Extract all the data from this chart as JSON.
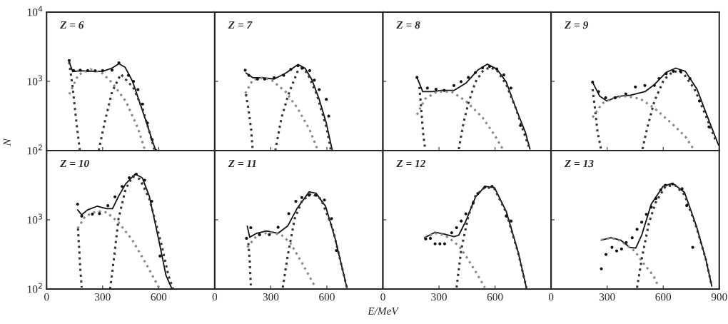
{
  "chart_data": [
    {
      "type": "line",
      "annotations": [
        "Z = 6"
      ],
      "ylabel": "N",
      "log": "y",
      "xlim": [
        0,
        900
      ],
      "xticks": [
        0,
        300,
        600
      ],
      "ylim": [
        100,
        10000
      ],
      "yticks": [
        {
          "value": 100,
          "label": "10$^{2}$"
        },
        {
          "value": 1000,
          "label": "10$^{3}$"
        },
        {
          "value": 10000,
          "label": "10$^{4}$"
        }
      ],
      "tick_labels": "y",
      "series": [
        {
          "type": "scatter",
          "marker": "circle",
          "color": "#111111",
          "x": [
            121,
            145,
            180,
            220,
            260,
            300,
            350,
            387,
            438,
            465,
            489,
            514,
            540,
            565,
            585
          ],
          "values": [
            2000,
            1430,
            1450,
            1430,
            1420,
            1430,
            1450,
            1850,
            1220,
            1000,
            760,
            470,
            250,
            144,
            100
          ]
        },
        {
          "type": "line",
          "line_style": "solid",
          "color": "#111111",
          "x": [
            121,
            140,
            180,
            240,
            300,
            350,
            387,
            420,
            460,
            500,
            540,
            565,
            585
          ],
          "values": [
            1900,
            1380,
            1420,
            1400,
            1400,
            1550,
            1800,
            1600,
            1000,
            480,
            230,
            140,
            100
          ]
        },
        {
          "type": "line",
          "line_style": "dotted",
          "color": "#333333",
          "x": [
            121,
            140,
            160,
            178
          ],
          "values": [
            1900,
            800,
            250,
            100
          ]
        },
        {
          "type": "line",
          "line_style": "dotted",
          "color": "#888888",
          "x": [
            121,
            170,
            235,
            300,
            350,
            425,
            489,
            527
          ],
          "values": [
            650,
            1250,
            1490,
            1300,
            960,
            510,
            210,
            100
          ]
        },
        {
          "type": "line",
          "line_style": "dotted",
          "color": "#333333",
          "x": [
            279,
            310,
            350,
            397,
            463,
            514,
            552,
            578
          ],
          "values": [
            100,
            250,
            700,
            1270,
            820,
            400,
            180,
            100
          ]
        }
      ]
    },
    {
      "type": "line",
      "annotations": [
        "Z = 7"
      ],
      "log": "y",
      "xlim": [
        0,
        900
      ],
      "xticks": [
        0,
        300,
        600
      ],
      "ylim": [
        100,
        10000
      ],
      "yticks": [
        100,
        1000,
        10000
      ],
      "tick_labels": false,
      "series": [
        {
          "type": "scatter",
          "marker": "circle",
          "color": "#111111",
          "x": [
            163,
            183,
            229,
            267,
            318,
            369,
            407,
            445,
            470,
            508,
            533,
            559,
            597,
            610
          ],
          "values": [
            1450,
            1220,
            1080,
            1080,
            1130,
            1220,
            1490,
            1680,
            1550,
            1430,
            1040,
            760,
            550,
            315
          ]
        },
        {
          "type": "line",
          "line_style": "solid",
          "color": "#111111",
          "x": [
            167,
            203,
            254,
            318,
            381,
            445,
            483,
            521,
            559,
            597,
            629
          ],
          "values": [
            1320,
            1130,
            1130,
            1080,
            1320,
            1750,
            1550,
            1040,
            550,
            250,
            100
          ]
        },
        {
          "type": "line",
          "line_style": "dotted",
          "color": "#333333",
          "x": [
            167,
            180,
            195,
            203
          ],
          "values": [
            650,
            400,
            200,
            100
          ]
        },
        {
          "type": "line",
          "line_style": "dotted",
          "color": "#888888",
          "x": [
            163,
            203,
            254,
            305,
            381,
            445,
            508,
            552
          ],
          "values": [
            670,
            1040,
            1130,
            1040,
            700,
            400,
            200,
            100
          ]
        },
        {
          "type": "line",
          "line_style": "dotted",
          "color": "#333333",
          "x": [
            324,
            356,
            394,
            445,
            464,
            496,
            546,
            597,
            622
          ],
          "values": [
            100,
            290,
            645,
            1430,
            1550,
            1320,
            645,
            220,
            100
          ]
        }
      ]
    },
    {
      "type": "line",
      "annotations": [
        "Z = 8"
      ],
      "log": "y",
      "xlim": [
        0,
        900
      ],
      "xticks": [
        0,
        300,
        600
      ],
      "ylim": [
        100,
        10000
      ],
      "yticks": [
        100,
        1000,
        10000
      ],
      "tick_labels": false,
      "series": [
        {
          "type": "scatter",
          "marker": "circle",
          "color": "#111111",
          "x": [
            182,
            238,
            284,
            328,
            380,
            418,
            457,
            495,
            533,
            571,
            609,
            647,
            685,
            736
          ],
          "values": [
            1140,
            800,
            770,
            740,
            870,
            990,
            1140,
            1340,
            1570,
            1640,
            1510,
            1240,
            800,
            230
          ]
        },
        {
          "type": "line",
          "line_style": "solid",
          "color": "#111111",
          "x": [
            182,
            213,
            265,
            316,
            380,
            444,
            507,
            558,
            609,
            660,
            711,
            762,
            787
          ],
          "values": [
            1140,
            710,
            710,
            740,
            740,
            940,
            1450,
            1770,
            1510,
            980,
            410,
            185,
            105
          ]
        },
        {
          "type": "line",
          "line_style": "dotted",
          "color": "#333333",
          "x": [
            195,
            205,
            215,
            226
          ],
          "values": [
            830,
            400,
            180,
            105
          ]
        },
        {
          "type": "line",
          "line_style": "dotted",
          "color": "#888888",
          "x": [
            182,
            226,
            290,
            367,
            444,
            533,
            596,
            641
          ],
          "values": [
            330,
            560,
            710,
            710,
            520,
            300,
            170,
            105
          ]
        },
        {
          "type": "line",
          "line_style": "dotted",
          "color": "#333333",
          "x": [
            406,
            431,
            457,
            495,
            533,
            571,
            609,
            660,
            711,
            749,
            785
          ],
          "values": [
            105,
            250,
            480,
            980,
            1390,
            1600,
            1450,
            900,
            410,
            200,
            105
          ]
        }
      ]
    },
    {
      "type": "line",
      "annotations": [
        "Z = 9"
      ],
      "log": "y",
      "xlim": [
        0,
        900
      ],
      "xticks": [
        0,
        300,
        600
      ],
      "ylim": [
        100,
        10000
      ],
      "yticks": [
        100,
        1000,
        10000
      ],
      "tick_labels": false,
      "series": [
        {
          "type": "scatter",
          "marker": "circle",
          "color": "#111111",
          "x": [
            222,
            254,
            292,
            343,
            400,
            451,
            502,
            553,
            578,
            616,
            654,
            692,
            743,
            794,
            845
          ],
          "values": [
            975,
            710,
            580,
            580,
            660,
            830,
            870,
            870,
            1100,
            1290,
            1400,
            1400,
            1100,
            520,
            220
          ]
        },
        {
          "type": "line",
          "line_style": "solid",
          "color": "#111111",
          "x": [
            222,
            260,
            299,
            362,
            426,
            502,
            553,
            616,
            667,
            718,
            781,
            845,
            896
          ],
          "values": [
            975,
            610,
            520,
            610,
            630,
            710,
            900,
            1350,
            1550,
            1400,
            770,
            270,
            120
          ]
        },
        {
          "type": "line",
          "line_style": "dotted",
          "color": "#333333",
          "x": [
            222,
            235,
            248,
            267
          ],
          "values": [
            770,
            400,
            190,
            105
          ]
        },
        {
          "type": "line",
          "line_style": "dotted",
          "color": "#888888",
          "x": [
            222,
            273,
            337,
            400,
            477,
            553,
            654,
            718,
            762
          ],
          "values": [
            300,
            480,
            580,
            610,
            560,
            410,
            235,
            160,
            105
          ]
        },
        {
          "type": "line",
          "line_style": "dotted",
          "color": "#333333",
          "x": [
            489,
            515,
            553,
            604,
            654,
            705,
            768,
            832,
            883
          ],
          "values": [
            105,
            215,
            520,
            1060,
            1400,
            1340,
            770,
            300,
            135
          ]
        }
      ]
    },
    {
      "type": "line",
      "annotations": [
        "Z = 10"
      ],
      "log": "y",
      "xlim": [
        0,
        900
      ],
      "xticks": [
        0,
        300,
        600
      ],
      "ylim": [
        100,
        10000
      ],
      "yticks": [
        {
          "value": 100,
          "label": "10$^{2}$"
        },
        {
          "value": 1000,
          "label": "10$^{3}$"
        },
        {
          "value": 10000,
          "label": null
        }
      ],
      "series": [
        {
          "type": "scatter",
          "marker": "circle",
          "color": "#111111",
          "x": [
            166,
            188,
            245,
            283,
            328,
            366,
            404,
            442,
            480,
            525,
            563,
            607
          ],
          "values": [
            1680,
            1130,
            1210,
            1230,
            1600,
            2150,
            3030,
            4050,
            4570,
            3730,
            1850,
            300
          ]
        },
        {
          "type": "line",
          "line_style": "solid",
          "color": "#111111",
          "x": [
            166,
            188,
            219,
            270,
            321,
            353,
            385,
            423,
            474,
            512,
            550,
            601,
            639,
            671
          ],
          "values": [
            1390,
            1180,
            1390,
            1570,
            1450,
            1450,
            2180,
            3300,
            4570,
            4050,
            2180,
            500,
            157,
            100
          ]
        },
        {
          "type": "line",
          "line_style": "dotted",
          "color": "#333333",
          "x": [
            168,
            174,
            180,
            188
          ],
          "values": [
            750,
            400,
            200,
            105
          ]
        },
        {
          "type": "line",
          "line_style": "dotted",
          "color": "#888888",
          "x": [
            166,
            207,
            270,
            321,
            385,
            461,
            537,
            601
          ],
          "values": [
            750,
            1130,
            1330,
            1280,
            920,
            500,
            220,
            105
          ]
        },
        {
          "type": "line",
          "line_style": "dotted",
          "color": "#333333",
          "x": [
            340,
            359,
            385,
            423,
            461,
            499,
            550,
            613,
            652,
            677
          ],
          "values": [
            100,
            257,
            1040,
            2790,
            4220,
            3880,
            2010,
            460,
            157,
            100
          ]
        }
      ]
    },
    {
      "type": "line",
      "annotations": [
        "Z = 11"
      ],
      "xlabel": "E/MeV",
      "log": "y",
      "xlim": [
        0,
        900
      ],
      "xticks": [
        0,
        300,
        600
      ],
      "ylim": [
        100,
        10000
      ],
      "yticks": [
        100,
        1000,
        10000
      ],
      "tick_labels": "x",
      "series": [
        {
          "type": "scatter",
          "marker": "circle",
          "color": "#111111",
          "x": [
            170,
            193,
            239,
            292,
            339,
            396,
            434,
            466,
            505,
            543,
            587,
            625,
            651
          ],
          "values": [
            540,
            770,
            610,
            610,
            780,
            1230,
            1850,
            2100,
            2270,
            2270,
            1930,
            1040,
            360
          ]
        },
        {
          "type": "line",
          "line_style": "solid",
          "color": "#111111",
          "x": [
            174,
            187,
            225,
            276,
            339,
            390,
            440,
            505,
            543,
            593,
            644,
            682,
            707
          ],
          "values": [
            810,
            560,
            640,
            690,
            640,
            810,
            1450,
            2530,
            2410,
            1570,
            540,
            200,
            105
          ]
        },
        {
          "type": "line",
          "line_style": "dotted",
          "color": "#333333",
          "x": [
            180,
            187,
            193
          ],
          "values": [
            460,
            257,
            113
          ]
        },
        {
          "type": "line",
          "line_style": "dotted",
          "color": "#888888",
          "x": [
            174,
            225,
            292,
            355,
            405,
            466,
            537
          ],
          "values": [
            400,
            590,
            660,
            610,
            460,
            240,
            108
          ]
        },
        {
          "type": "line",
          "line_style": "dotted",
          "color": "#333333",
          "x": [
            364,
            390,
            428,
            466,
            517,
            568,
            631,
            682,
            707
          ],
          "values": [
            105,
            300,
            1040,
            1850,
            2410,
            2000,
            750,
            200,
            105
          ]
        }
      ]
    },
    {
      "type": "line",
      "annotations": [
        "Z = 12"
      ],
      "log": "y",
      "xlim": [
        0,
        900
      ],
      "xticks": [
        0,
        300,
        600
      ],
      "ylim": [
        100,
        10000
      ],
      "yticks": [
        100,
        1000,
        10000
      ],
      "tick_labels": "x",
      "series": [
        {
          "type": "scatter",
          "marker": "circle",
          "color": "#111111",
          "x": [
            229,
            254,
            279,
            305,
            330,
            368,
            394,
            419,
            444,
            483,
            508,
            546,
            584,
            660,
            686
          ],
          "values": [
            530,
            540,
            450,
            450,
            450,
            650,
            770,
            960,
            1220,
            1740,
            2390,
            2970,
            3040,
            1130,
            960
          ]
        },
        {
          "type": "line",
          "line_style": "solid",
          "color": "#111111",
          "x": [
            222,
            279,
            330,
            381,
            406,
            444,
            495,
            546,
            597,
            660,
            724,
            768
          ],
          "values": [
            550,
            660,
            620,
            570,
            600,
            960,
            2125,
            3040,
            2920,
            1320,
            340,
            104
          ]
        },
        {
          "type": "line",
          "line_style": "dotted",
          "color": "#888888",
          "x": [
            222,
            279,
            330,
            368,
            406,
            444,
            495,
            546
          ],
          "values": [
            550,
            640,
            600,
            510,
            420,
            300,
            180,
            105
          ]
        },
        {
          "type": "line",
          "line_style": "dotted",
          "color": "#333333",
          "x": [
            394,
            419,
            457,
            495,
            546,
            597,
            660,
            724,
            768
          ],
          "values": [
            105,
            370,
            1130,
            2210,
            2970,
            2800,
            1270,
            330,
            104
          ]
        }
      ]
    },
    {
      "type": "line",
      "annotations": [
        "Z = 13"
      ],
      "log": "y",
      "xlim": [
        0,
        900
      ],
      "xticks": [
        0,
        300,
        600,
        900
      ],
      "ylim": [
        100,
        10000
      ],
      "yticks": [
        100,
        1000,
        10000
      ],
      "tick_labels": "x",
      "series": [
        {
          "type": "scatter",
          "marker": "circle",
          "color": "#111111",
          "x": [
            269,
            294,
            326,
            351,
            377,
            402,
            434,
            460,
            485,
            510,
            536,
            561,
            587,
            612,
            650,
            701,
            726,
            758
          ],
          "values": [
            196,
            316,
            400,
            355,
            380,
            470,
            550,
            730,
            925,
            1200,
            1520,
            2040,
            2700,
            3160,
            3290,
            2810,
            1610,
            400
          ]
        },
        {
          "type": "line",
          "line_style": "solid",
          "color": "#111111",
          "x": [
            269,
            320,
            371,
            421,
            453,
            485,
            536,
            599,
            650,
            714,
            777,
            828,
            860
          ],
          "values": [
            510,
            550,
            510,
            400,
            390,
            600,
            1680,
            3040,
            3370,
            2490,
            820,
            270,
            110
          ]
        },
        {
          "type": "line",
          "line_style": "dotted",
          "color": "#888888",
          "x": [
            269,
            320,
            371,
            447,
            497,
            548,
            574
          ],
          "values": [
            510,
            550,
            500,
            355,
            230,
            155,
            110
          ]
        },
        {
          "type": "line",
          "line_style": "dotted",
          "color": "#333333",
          "x": [
            460,
            485,
            523,
            561,
            612,
            663,
            714,
            777,
            828,
            860
          ],
          "values": [
            104,
            270,
            890,
            1810,
            3040,
            3160,
            2300,
            790,
            270,
            110
          ]
        }
      ]
    }
  ]
}
